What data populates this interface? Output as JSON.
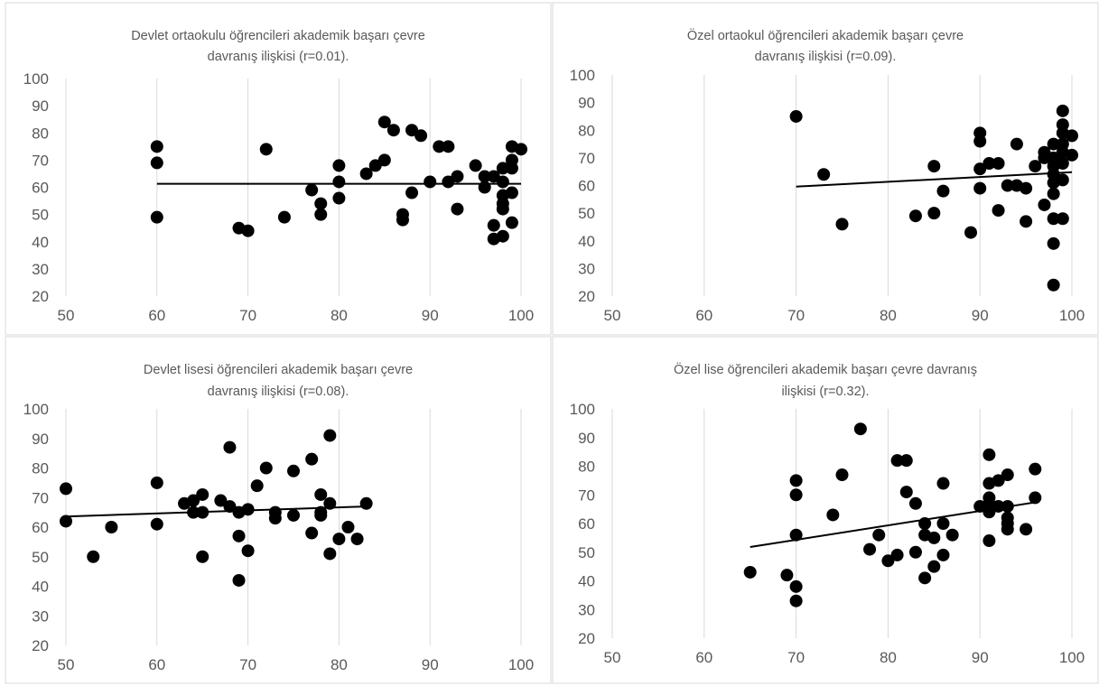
{
  "colors": {
    "point": "#000000",
    "trendline": "#000000",
    "text": "#595959",
    "grid": "#d9d9d9",
    "frame": "#d9d9d9"
  },
  "chart_data": [
    {
      "type": "scatter",
      "title_lines": [
        "Devlet ortaokulu öğrencileri akademik başarı çevre",
        "davranış ilişkisi (r=0.01)."
      ],
      "xlabel": "",
      "ylabel": "",
      "xlim": [
        50,
        100
      ],
      "ylim": [
        20,
        100
      ],
      "xticks": [
        50,
        60,
        70,
        80,
        90,
        100
      ],
      "yticks": [
        20,
        30,
        40,
        50,
        60,
        70,
        80,
        90,
        100
      ],
      "grid": "vertical",
      "trendline": [
        [
          60,
          61.3
        ],
        [
          100,
          61.3
        ]
      ],
      "points": [
        [
          60,
          75
        ],
        [
          60,
          69
        ],
        [
          60,
          49
        ],
        [
          69,
          45
        ],
        [
          70,
          44
        ],
        [
          72,
          74
        ],
        [
          74,
          49
        ],
        [
          77,
          59
        ],
        [
          78,
          54
        ],
        [
          78,
          50
        ],
        [
          80,
          68
        ],
        [
          80,
          62
        ],
        [
          80,
          56
        ],
        [
          83,
          65
        ],
        [
          84,
          68
        ],
        [
          85,
          84
        ],
        [
          85,
          70
        ],
        [
          86,
          81
        ],
        [
          87,
          50
        ],
        [
          87,
          48
        ],
        [
          88,
          81
        ],
        [
          88,
          58
        ],
        [
          89,
          79
        ],
        [
          90,
          62
        ],
        [
          91,
          75
        ],
        [
          92,
          75
        ],
        [
          92,
          62
        ],
        [
          93,
          64
        ],
        [
          93,
          52
        ],
        [
          95,
          68
        ],
        [
          96,
          64
        ],
        [
          96,
          60
        ],
        [
          97,
          64
        ],
        [
          97,
          46
        ],
        [
          97,
          41
        ],
        [
          98,
          67
        ],
        [
          98,
          62
        ],
        [
          98,
          57
        ],
        [
          98,
          54
        ],
        [
          98,
          52
        ],
        [
          98,
          42
        ],
        [
          99,
          75
        ],
        [
          99,
          70
        ],
        [
          99,
          67
        ],
        [
          99,
          58
        ],
        [
          99,
          47
        ],
        [
          100,
          74
        ]
      ]
    },
    {
      "type": "scatter",
      "title_lines": [
        "Özel ortaokul öğrencileri akademik başarı çevre",
        "davranış ilişkisi (r=0.09)."
      ],
      "xlabel": "",
      "ylabel": "",
      "xlim": [
        50,
        100
      ],
      "ylim": [
        20,
        100
      ],
      "xticks": [
        50,
        60,
        70,
        80,
        90,
        100
      ],
      "yticks": [
        20,
        30,
        40,
        50,
        60,
        70,
        80,
        90,
        100
      ],
      "grid": "vertical",
      "trendline": [
        [
          70,
          59.6
        ],
        [
          100,
          64.8
        ]
      ],
      "points": [
        [
          70,
          85
        ],
        [
          73,
          64
        ],
        [
          75,
          46
        ],
        [
          83,
          49
        ],
        [
          85,
          67
        ],
        [
          85,
          50
        ],
        [
          86,
          58
        ],
        [
          89,
          43
        ],
        [
          90,
          79
        ],
        [
          90,
          76
        ],
        [
          90,
          66
        ],
        [
          90,
          59
        ],
        [
          91,
          68
        ],
        [
          92,
          68
        ],
        [
          92,
          51
        ],
        [
          93,
          60
        ],
        [
          94,
          75
        ],
        [
          94,
          60
        ],
        [
          95,
          59
        ],
        [
          95,
          47
        ],
        [
          96,
          67
        ],
        [
          97,
          72
        ],
        [
          97,
          70
        ],
        [
          97,
          53
        ],
        [
          98,
          75
        ],
        [
          98,
          70
        ],
        [
          98,
          67
        ],
        [
          98,
          64
        ],
        [
          98,
          61
        ],
        [
          98,
          57
        ],
        [
          98,
          48
        ],
        [
          98,
          39
        ],
        [
          98,
          24
        ],
        [
          99,
          87
        ],
        [
          99,
          82
        ],
        [
          99,
          79
        ],
        [
          99,
          75
        ],
        [
          99,
          72
        ],
        [
          99,
          68
        ],
        [
          99,
          62
        ],
        [
          99,
          48
        ],
        [
          100,
          78
        ],
        [
          100,
          71
        ]
      ]
    },
    {
      "type": "scatter",
      "title_lines": [
        "Devlet lisesi öğrencileri akademik başarı çevre",
        "davranış ilişkisi (r=0.08)."
      ],
      "xlabel": "",
      "ylabel": "",
      "xlim": [
        50,
        100
      ],
      "ylim": [
        20,
        100
      ],
      "xticks": [
        50,
        60,
        70,
        80,
        90,
        100
      ],
      "yticks": [
        20,
        30,
        40,
        50,
        60,
        70,
        80,
        90,
        100
      ],
      "grid": "vertical",
      "trendline": [
        [
          50,
          63.6
        ],
        [
          83,
          67
        ]
      ],
      "points": [
        [
          50,
          73
        ],
        [
          50,
          62
        ],
        [
          53,
          50
        ],
        [
          55,
          60
        ],
        [
          60,
          75
        ],
        [
          60,
          61
        ],
        [
          63,
          68
        ],
        [
          64,
          69
        ],
        [
          64,
          65
        ],
        [
          65,
          71
        ],
        [
          65,
          65
        ],
        [
          65,
          50
        ],
        [
          67,
          69
        ],
        [
          68,
          87
        ],
        [
          68,
          67
        ],
        [
          69,
          65
        ],
        [
          69,
          57
        ],
        [
          69,
          42
        ],
        [
          70,
          66
        ],
        [
          70,
          52
        ],
        [
          71,
          74
        ],
        [
          72,
          80
        ],
        [
          73,
          65
        ],
        [
          73,
          63
        ],
        [
          75,
          79
        ],
        [
          75,
          64
        ],
        [
          77,
          83
        ],
        [
          77,
          58
        ],
        [
          78,
          71
        ],
        [
          78,
          65
        ],
        [
          78,
          64
        ],
        [
          79,
          91
        ],
        [
          79,
          68
        ],
        [
          79,
          51
        ],
        [
          80,
          56
        ],
        [
          81,
          60
        ],
        [
          82,
          56
        ],
        [
          83,
          68
        ]
      ]
    },
    {
      "type": "scatter",
      "title_lines": [
        "Özel lise öğrencileri akademik başarı çevre davranış",
        "ilişkisi (r=0.32)."
      ],
      "xlabel": "",
      "ylabel": "",
      "xlim": [
        50,
        100
      ],
      "ylim": [
        20,
        100
      ],
      "xticks": [
        50,
        60,
        70,
        80,
        90,
        100
      ],
      "yticks": [
        20,
        30,
        40,
        50,
        60,
        70,
        80,
        90,
        100
      ],
      "grid": "vertical",
      "trendline": [
        [
          65,
          51.8
        ],
        [
          96,
          67.4
        ]
      ],
      "points": [
        [
          65,
          43
        ],
        [
          69,
          42
        ],
        [
          70,
          75
        ],
        [
          70,
          70
        ],
        [
          70,
          56
        ],
        [
          70,
          38
        ],
        [
          70,
          33
        ],
        [
          74,
          63
        ],
        [
          75,
          77
        ],
        [
          77,
          93
        ],
        [
          78,
          51
        ],
        [
          79,
          56
        ],
        [
          80,
          47
        ],
        [
          81,
          82
        ],
        [
          81,
          49
        ],
        [
          82,
          82
        ],
        [
          82,
          71
        ],
        [
          83,
          67
        ],
        [
          83,
          50
        ],
        [
          84,
          60
        ],
        [
          84,
          56
        ],
        [
          84,
          41
        ],
        [
          85,
          55
        ],
        [
          85,
          45
        ],
        [
          86,
          74
        ],
        [
          86,
          60
        ],
        [
          86,
          49
        ],
        [
          87,
          56
        ],
        [
          90,
          66
        ],
        [
          91,
          84
        ],
        [
          91,
          74
        ],
        [
          91,
          69
        ],
        [
          91,
          67
        ],
        [
          91,
          64
        ],
        [
          91,
          54
        ],
        [
          92,
          75
        ],
        [
          92,
          66
        ],
        [
          93,
          77
        ],
        [
          93,
          66
        ],
        [
          93,
          62
        ],
        [
          93,
          60
        ],
        [
          93,
          58
        ],
        [
          95,
          58
        ],
        [
          96,
          79
        ],
        [
          96,
          69
        ]
      ]
    }
  ]
}
